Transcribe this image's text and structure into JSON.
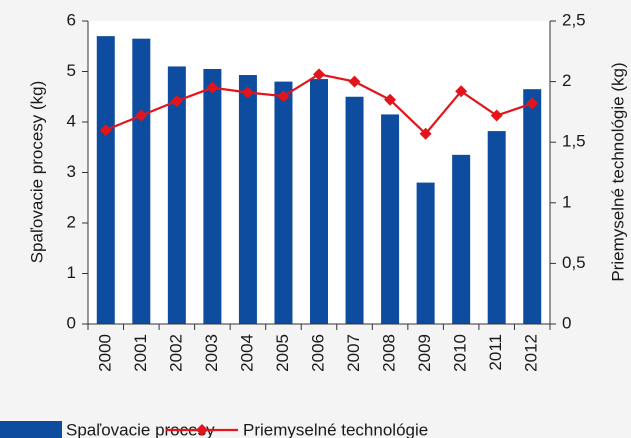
{
  "chart_data": {
    "type": "bar_line",
    "categories": [
      "2000",
      "2001",
      "2002",
      "2003",
      "2004",
      "2005",
      "2006",
      "2007",
      "2008",
      "2009",
      "2010",
      "2011",
      "2012"
    ],
    "series": [
      {
        "name": "Spaľovacie procesy",
        "color": "#0d4c9e",
        "type": "bar",
        "axis": "y",
        "values": [
          5.7,
          5.65,
          5.1,
          5.05,
          4.93,
          4.8,
          4.85,
          4.5,
          4.15,
          2.8,
          3.35,
          3.82,
          4.65
        ]
      },
      {
        "name": "Priemyselné technológie",
        "color": "#e2151d",
        "type": "line",
        "axis": "y2",
        "values": [
          1.6,
          1.72,
          1.84,
          1.95,
          1.91,
          1.88,
          2.06,
          2.0,
          1.85,
          1.57,
          1.92,
          1.72,
          1.82
        ]
      }
    ],
    "ylabel": "Spaľovacie procesy (kg)",
    "y2label": "Priemyselné technológie (kg)",
    "ylim": [
      0,
      6
    ],
    "yticks": [
      0,
      1,
      2,
      3,
      4,
      5,
      6
    ],
    "y2lim": [
      0,
      2.5
    ],
    "y2ticks": [
      0,
      {
        "value": 0.5,
        "label": "0,5"
      },
      1,
      {
        "value": 1.5,
        "label": "1,5"
      },
      2,
      {
        "value": 2.5,
        "label": "2,5"
      }
    ],
    "legend": "bottom"
  }
}
